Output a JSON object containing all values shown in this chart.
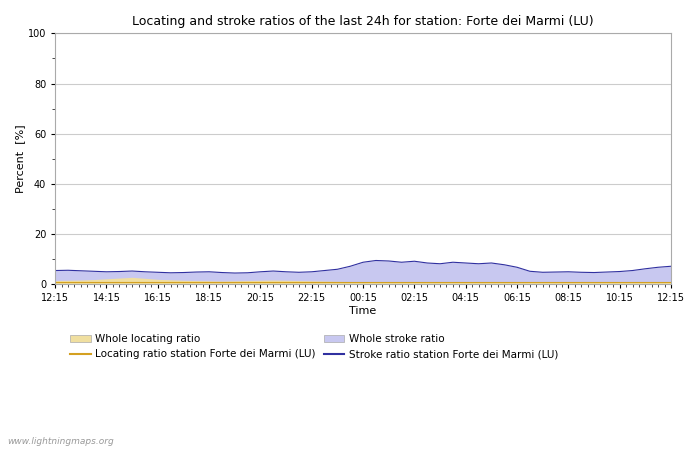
{
  "title": "Locating and stroke ratios of the last 24h for station: Forte dei Marmi (LU)",
  "xlabel": "Time",
  "ylabel": "Percent  [%]",
  "ylim": [
    0,
    100
  ],
  "yticks": [
    0,
    20,
    40,
    60,
    80,
    100
  ],
  "yticks_minor": [
    10,
    30,
    50,
    70,
    90
  ],
  "x_labels": [
    "12:15",
    "14:15",
    "16:15",
    "18:15",
    "20:15",
    "22:15",
    "00:15",
    "02:15",
    "04:15",
    "06:15",
    "08:15",
    "10:15",
    "12:15"
  ],
  "bg_color": "#ffffff",
  "plot_bg_color": "#ffffff",
  "grid_color": "#cccccc",
  "watermark": "www.lightningmaps.org",
  "legend": [
    {
      "label": "Whole locating ratio",
      "type": "patch",
      "color": "#f0dfa0"
    },
    {
      "label": "Locating ratio station Forte dei Marmi (LU)",
      "type": "line",
      "color": "#d4a020"
    },
    {
      "label": "Whole stroke ratio",
      "type": "patch",
      "color": "#c8c8f0"
    },
    {
      "label": "Stroke ratio station Forte dei Marmi (LU)",
      "type": "line",
      "color": "#3030a0"
    }
  ],
  "whole_locating_ratio": [
    1.5,
    1.6,
    1.7,
    1.9,
    2.2,
    2.5,
    2.8,
    2.4,
    2.0,
    1.8,
    1.6,
    1.5,
    1.4,
    1.3,
    1.4,
    1.5,
    1.6,
    1.7,
    1.6,
    1.5,
    1.4,
    1.3,
    1.2,
    1.1,
    1.0,
    1.0,
    1.0,
    1.0,
    1.0,
    1.0,
    1.0,
    1.0,
    1.0,
    1.0,
    1.0,
    1.0,
    1.0,
    1.0,
    1.0,
    1.0,
    1.0,
    1.0,
    1.0,
    1.0,
    1.0,
    1.0,
    1.0,
    1.0,
    1.0
  ],
  "whole_stroke_ratio": [
    5.5,
    5.6,
    5.4,
    5.2,
    5.0,
    5.1,
    5.3,
    5.0,
    4.8,
    4.6,
    4.7,
    4.9,
    5.0,
    4.7,
    4.5,
    4.6,
    5.0,
    5.3,
    5.0,
    4.8,
    5.0,
    5.5,
    6.0,
    7.2,
    8.8,
    9.5,
    9.3,
    8.8,
    9.2,
    8.5,
    8.2,
    8.8,
    8.5,
    8.2,
    8.5,
    7.8,
    6.8,
    5.2,
    4.8,
    4.9,
    5.0,
    4.8,
    4.7,
    4.9,
    5.1,
    5.5,
    6.2,
    6.8,
    7.2
  ],
  "station_locating_ratio": [
    1.0,
    1.0,
    1.0,
    1.0,
    1.0,
    1.0,
    1.0,
    1.0,
    1.0,
    1.0,
    1.0,
    1.0,
    1.0,
    1.0,
    1.0,
    1.0,
    1.0,
    1.0,
    1.0,
    1.0,
    1.0,
    1.0,
    1.0,
    1.0,
    1.0,
    1.0,
    1.0,
    1.0,
    1.0,
    1.0,
    1.0,
    1.0,
    1.0,
    1.0,
    1.0,
    1.0,
    1.0,
    1.0,
    1.0,
    1.0,
    1.0,
    1.0,
    1.0,
    1.0,
    1.0,
    1.0,
    1.0,
    1.0,
    1.0
  ],
  "station_stroke_ratio": [
    5.5,
    5.6,
    5.4,
    5.2,
    5.0,
    5.1,
    5.3,
    5.0,
    4.8,
    4.6,
    4.7,
    4.9,
    5.0,
    4.7,
    4.5,
    4.6,
    5.0,
    5.3,
    5.0,
    4.8,
    5.0,
    5.5,
    6.0,
    7.2,
    8.8,
    9.5,
    9.3,
    8.8,
    9.2,
    8.5,
    8.2,
    8.8,
    8.5,
    8.2,
    8.5,
    7.8,
    6.8,
    5.2,
    4.8,
    4.9,
    5.0,
    4.8,
    4.7,
    4.9,
    5.1,
    5.5,
    6.2,
    6.8,
    7.2
  ]
}
